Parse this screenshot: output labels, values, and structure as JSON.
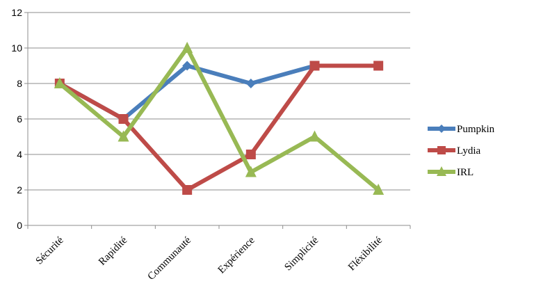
{
  "chart_data": {
    "type": "line",
    "title": "",
    "xlabel": "",
    "ylabel": "",
    "categories": [
      "Sécurité",
      "Rapidité",
      "Communauté",
      "Expérience",
      "Simplicité",
      "Fléxibilité"
    ],
    "ylim": [
      0,
      12
    ],
    "yticks": [
      "0",
      "2",
      "4",
      "6",
      "8",
      "10",
      "12"
    ],
    "grid": true,
    "legend_position": "right",
    "series": [
      {
        "name": "Pumpkin",
        "values": [
          8,
          6,
          9,
          8,
          9,
          9
        ],
        "color": "#4a7ebb",
        "marker": "diamond"
      },
      {
        "name": "Lydia",
        "values": [
          8,
          6,
          2,
          4,
          9,
          9
        ],
        "color": "#be4b48",
        "marker": "square"
      },
      {
        "name": "IRL",
        "values": [
          8,
          5,
          10,
          3,
          5,
          2
        ],
        "color": "#98b954",
        "marker": "triangle"
      }
    ]
  }
}
